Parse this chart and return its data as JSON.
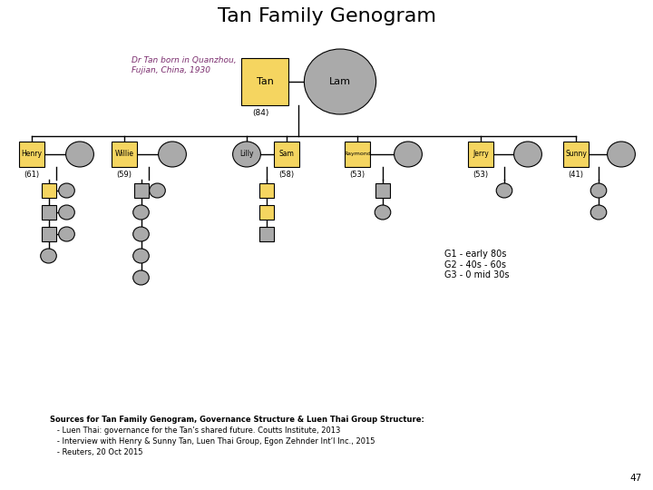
{
  "title": "Tan Family Genogram",
  "title_fontsize": 16,
  "bg_color": "#ffffff",
  "yellow": "#F5D560",
  "gray": "#AAAAAA",
  "purple": "#7B2D6E",
  "g1_note": "G1 - early 80s\nG2 - 40s - 60s\nG3 - 0 mid 30s",
  "sources_line1": "Sources for Tan Family Genogram, Governance Structure & Luen Thai Group Structure:",
  "sources_line2": "   - Luen Thai: governance for the Tan’s shared future. Coutts Institute, 2013",
  "sources_line3": "   - Interview with Henry & Sunny Tan, Luen Thai Group, Egon Zehnder Int’l Inc., 2015",
  "sources_line4": "   - Reuters, 20 Oct 2015",
  "page_num": "47",
  "annotation_text": "Dr Tan born in Quanzhou,\nFujian, China, 1930"
}
